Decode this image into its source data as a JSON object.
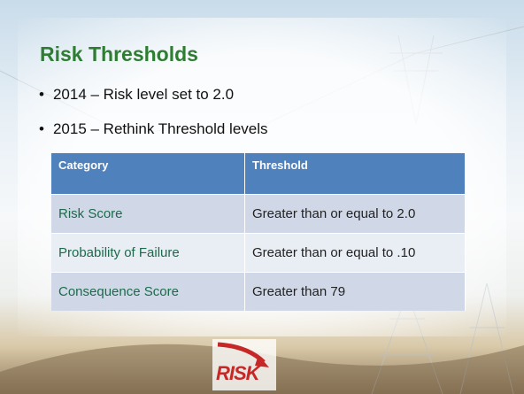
{
  "header": {
    "title": "Risk Thresholds"
  },
  "bullets": [
    "2014 – Risk level set to 2.0",
    "2015 – Rethink Threshold levels"
  ],
  "table": {
    "columns": [
      "Category",
      "Threshold"
    ],
    "rows": [
      [
        "Risk Score",
        "Greater than or equal to 2.0"
      ],
      [
        "Probability of Failure",
        "Greater than or equal to .10"
      ],
      [
        "Consequence Score",
        "Greater than 79"
      ]
    ]
  },
  "logo": {
    "text": "RISK"
  }
}
